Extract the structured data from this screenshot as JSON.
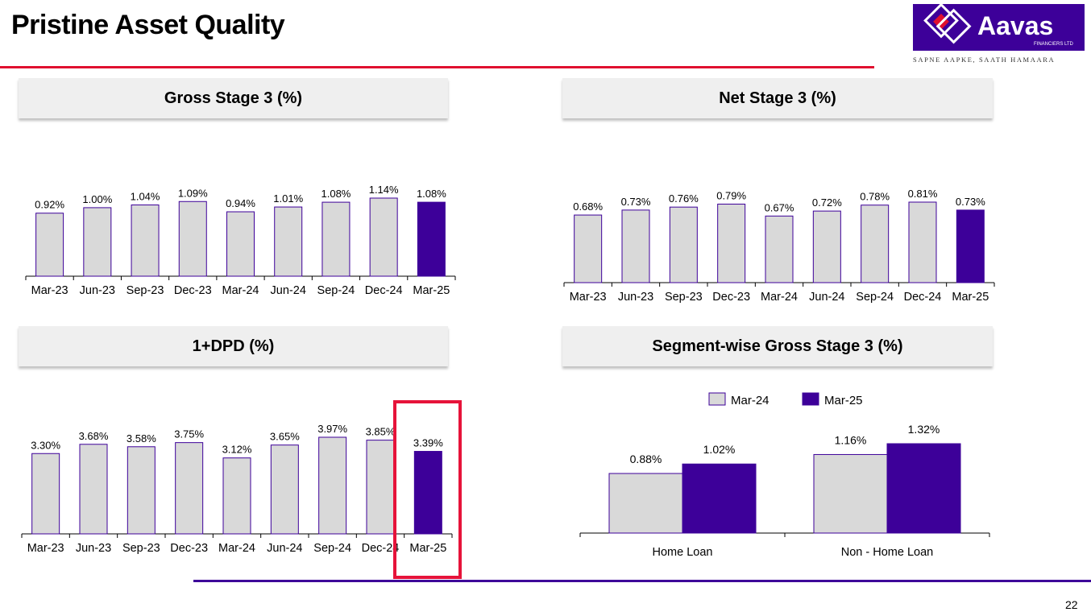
{
  "page": {
    "title": "Pristine Asset Quality",
    "page_number": "22"
  },
  "logo": {
    "name": "Aavas",
    "sub": "FINANCIERS LTD",
    "tagline": "SAPNE AAPKE, SAATH HAMAARA"
  },
  "colors": {
    "accent_red": "#e0102f",
    "purple": "#3d0099",
    "bar_grey": "#d9d9d9",
    "highlight_red": "#e6133a"
  },
  "panels": {
    "gross_stage3": "Gross Stage 3 (%)",
    "net_stage3": "Net Stage 3 (%)",
    "dpd": "1+DPD (%)",
    "segment": "Segment-wise Gross Stage 3 (%)"
  },
  "chart_data": [
    {
      "type": "bar",
      "title": "Gross Stage 3 (%)",
      "categories": [
        "Mar-23",
        "Jun-23",
        "Sep-23",
        "Dec-23",
        "Mar-24",
        "Jun-24",
        "Sep-24",
        "Dec-24",
        "Mar-25"
      ],
      "values": [
        0.92,
        1.0,
        1.04,
        1.09,
        0.94,
        1.01,
        1.08,
        1.14,
        1.08
      ],
      "labels": [
        "0.92%",
        "1.00%",
        "1.04%",
        "1.09%",
        "0.94%",
        "1.01%",
        "1.08%",
        "1.14%",
        "1.08%"
      ],
      "highlight_last": true,
      "ylim": [
        0,
        1.14
      ]
    },
    {
      "type": "bar",
      "title": "Net Stage 3 (%)",
      "categories": [
        "Mar-23",
        "Jun-23",
        "Sep-23",
        "Dec-23",
        "Mar-24",
        "Jun-24",
        "Sep-24",
        "Dec-24",
        "Mar-25"
      ],
      "values": [
        0.68,
        0.73,
        0.76,
        0.79,
        0.67,
        0.72,
        0.78,
        0.81,
        0.73
      ],
      "labels": [
        "0.68%",
        "0.73%",
        "0.76%",
        "0.79%",
        "0.67%",
        "0.72%",
        "0.78%",
        "0.81%",
        "0.73%"
      ],
      "highlight_last": true,
      "ylim": [
        0,
        0.81
      ]
    },
    {
      "type": "bar",
      "title": "1+DPD (%)",
      "categories": [
        "Mar-23",
        "Jun-23",
        "Sep-23",
        "Dec-23",
        "Mar-24",
        "Jun-24",
        "Sep-24",
        "Dec-24",
        "Mar-25"
      ],
      "values": [
        3.3,
        3.68,
        3.58,
        3.75,
        3.12,
        3.65,
        3.97,
        3.85,
        3.39
      ],
      "labels": [
        "3.30%",
        "3.68%",
        "3.58%",
        "3.75%",
        "3.12%",
        "3.65%",
        "3.97%",
        "3.85%",
        "3.39%"
      ],
      "highlight_last": true,
      "ylim": [
        0,
        3.97
      ]
    },
    {
      "type": "bar",
      "title": "Segment-wise Gross Stage 3 (%)",
      "categories": [
        "Home Loan",
        "Non - Home Loan"
      ],
      "series": [
        {
          "name": "Mar-24",
          "values": [
            0.88,
            1.16
          ],
          "labels": [
            "0.88%",
            "1.16%"
          ]
        },
        {
          "name": "Mar-25",
          "values": [
            1.02,
            1.32
          ],
          "labels": [
            "1.02%",
            "1.32%"
          ]
        }
      ],
      "legend": "top-center",
      "ylim": [
        0,
        1.32
      ]
    }
  ]
}
